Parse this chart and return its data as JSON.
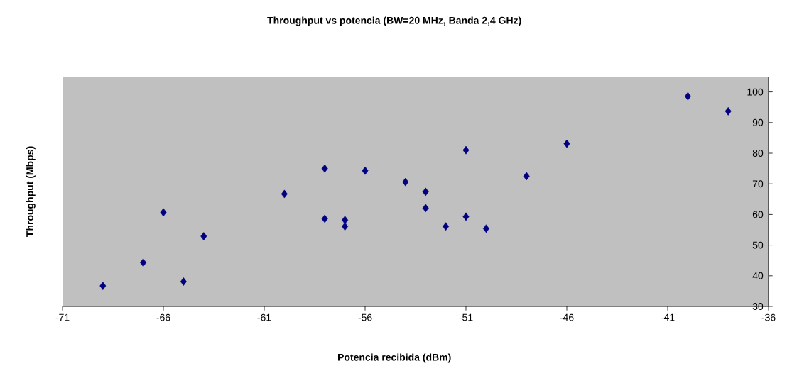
{
  "chart_data": {
    "type": "scatter",
    "title": "Throughput vs potencia (BW=20 MHz, Banda 2,4 GHz)",
    "xlabel": "Potencia recibida (dBm)",
    "ylabel": "Throughput (Mbps)",
    "x": [
      -69,
      -67,
      -66,
      -65,
      -64,
      -60,
      -58,
      -58,
      -57,
      -57,
      -56,
      -54,
      -53,
      -53,
      -52,
      -51,
      -51,
      -50,
      -48,
      -46,
      -40,
      -38
    ],
    "values": [
      36.7,
      44.3,
      60.7,
      38.1,
      52.9,
      66.7,
      75.0,
      58.6,
      58.2,
      56.1,
      74.3,
      70.6,
      67.4,
      62.1,
      56.1,
      81.0,
      59.3,
      55.4,
      72.5,
      83.1,
      98.6,
      93.7
    ],
    "color": "#000080",
    "marker": "diamond",
    "xlim": [
      -71,
      -36
    ],
    "xticks": [
      -71,
      -66,
      -61,
      -56,
      -51,
      -46,
      -41,
      -36
    ],
    "ylim": [
      30,
      105
    ],
    "yticks": [
      30,
      40,
      50,
      60,
      70,
      80,
      90,
      100
    ]
  }
}
